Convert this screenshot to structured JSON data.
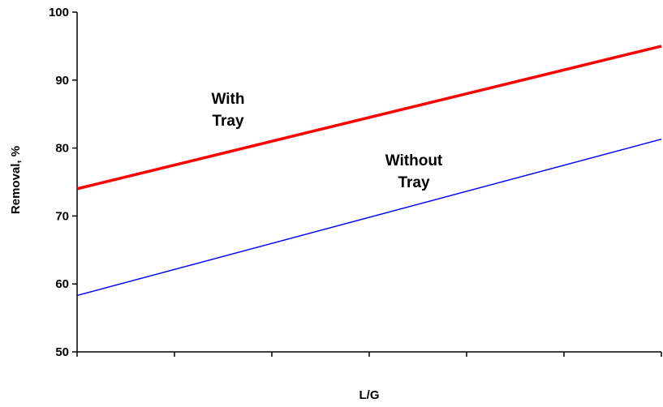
{
  "chart_data": {
    "type": "line",
    "xlabel": "L/G",
    "ylabel": "Removal, %",
    "ylim": [
      50,
      100
    ],
    "yticks": [
      "50",
      "60",
      "70",
      "80",
      "90",
      "100"
    ],
    "x_tick_count": 6,
    "x": [
      0,
      1
    ],
    "series": [
      {
        "name": "With Tray",
        "values": [
          74,
          95
        ],
        "color": "#ff0000"
      },
      {
        "name": "Without Tray",
        "values": [
          58.3,
          81.3
        ],
        "color": "#0000ff"
      }
    ],
    "annotations": [
      {
        "series": 0,
        "lines": [
          "With",
          "Tray"
        ]
      },
      {
        "series": 1,
        "lines": [
          "Without",
          "Tray"
        ]
      }
    ],
    "grid": false,
    "legend": "none"
  }
}
